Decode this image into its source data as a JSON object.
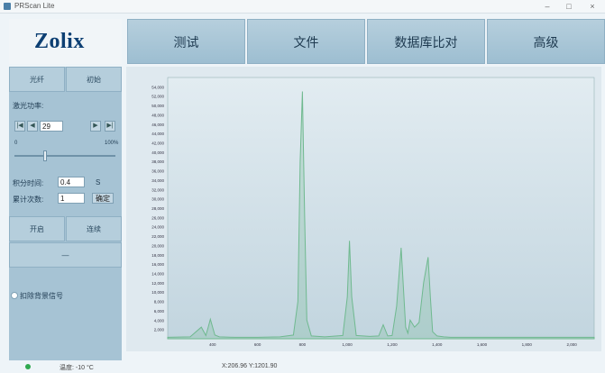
{
  "window": {
    "title": "PRScan Lite",
    "minimize": "–",
    "maximize": "□",
    "close": "×"
  },
  "logo": "Zolix",
  "nav": {
    "tabs": [
      {
        "label": "测试"
      },
      {
        "label": "文件"
      },
      {
        "label": "数据库比对"
      },
      {
        "label": "高级"
      }
    ]
  },
  "left_panel": {
    "top_buttons": [
      "光纤",
      "初始"
    ],
    "laser_power_label": "激光功率:",
    "power_value": "29",
    "slider_min": "0",
    "slider_max": "100%",
    "slider_level": 0.3,
    "integration_time_label": "积分时间:",
    "integration_time_value": "0.4",
    "integration_time_unit": "S",
    "accumulation_label": "累计次数:",
    "accumulation_value": "1",
    "apply_button": "确定",
    "action_buttons": [
      "开启",
      "连续"
    ],
    "mid_bar": "—",
    "checkbox_label": "扣除背景信号"
  },
  "status": {
    "temperature": "温度: -10 °C",
    "coords": "X:206.96 Y:1201.90"
  },
  "colors": {
    "accent": "#0d3f73",
    "trace": "#6fb98f",
    "status_dot": "#2fa84f"
  },
  "chart_data": {
    "type": "line",
    "y_ticks": [
      "54,000",
      "52,000",
      "50,000",
      "48,000",
      "46,000",
      "44,000",
      "42,000",
      "40,000",
      "38,000",
      "36,000",
      "34,000",
      "32,000",
      "30,000",
      "28,000",
      "26,000",
      "24,000",
      "22,000",
      "20,000",
      "18,000",
      "16,000",
      "14,000",
      "12,000",
      "10,000",
      "8,000",
      "6,000",
      "4,000",
      "2,000"
    ],
    "x_ticks": [
      "400",
      "600",
      "800",
      "1,000",
      "1,200",
      "1,400",
      "1,600",
      "1,800",
      "2,000"
    ],
    "xlim": [
      200,
      2100
    ],
    "ylim": [
      0,
      56000
    ],
    "grid": false,
    "series": [
      {
        "x": [
          200,
          300,
          350,
          370,
          380,
          390,
          400,
          410,
          430,
          500,
          600,
          700,
          760,
          780,
          790,
          800,
          810,
          820,
          840,
          900,
          980,
          1000,
          1010,
          1020,
          1040,
          1100,
          1140,
          1160,
          1180,
          1200,
          1220,
          1240,
          1250,
          1260,
          1270,
          1280,
          1300,
          1320,
          1340,
          1360,
          1370,
          1380,
          1400,
          1430,
          1460,
          1480,
          1500,
          1600,
          1700,
          1800,
          1900,
          2000,
          2100
        ],
        "y": [
          300,
          400,
          2500,
          700,
          2400,
          4200,
          2500,
          800,
          400,
          300,
          300,
          400,
          800,
          8000,
          38000,
          53000,
          26000,
          4000,
          600,
          400,
          700,
          9000,
          21000,
          9000,
          700,
          500,
          600,
          3000,
          600,
          700,
          7000,
          19500,
          11000,
          2500,
          1200,
          4000,
          2500,
          3500,
          12000,
          17500,
          9000,
          1500,
          600,
          400,
          300,
          300,
          300,
          300,
          300,
          300,
          300,
          300,
          300
        ]
      }
    ]
  }
}
